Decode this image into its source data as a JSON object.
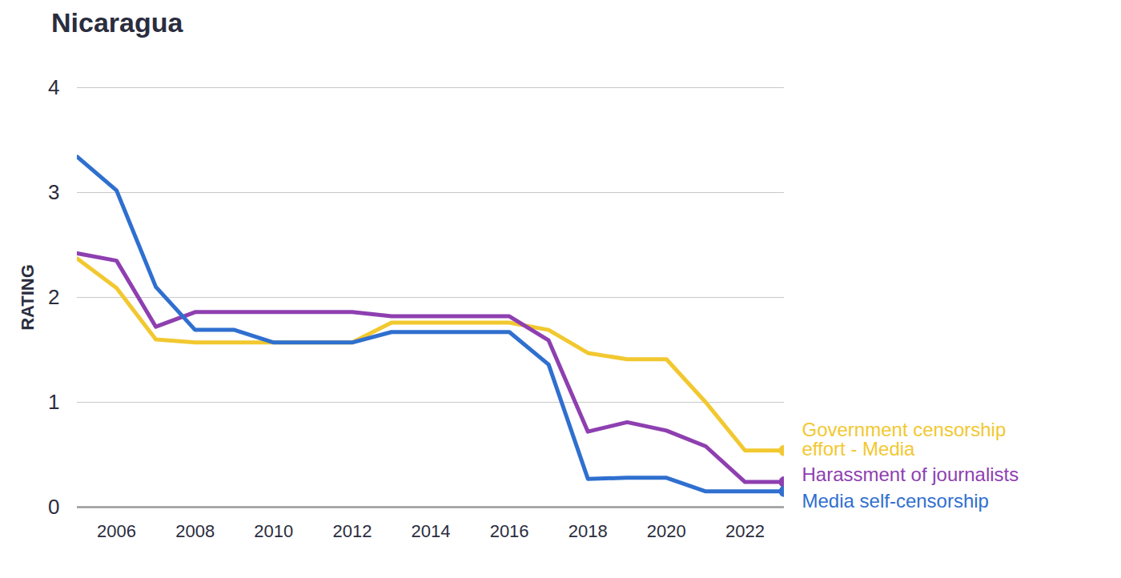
{
  "chart_data": {
    "type": "line",
    "title": "Nicaragua",
    "y_label": "RATING",
    "x": [
      2005,
      2006,
      2007,
      2008,
      2009,
      2010,
      2011,
      2012,
      2013,
      2014,
      2015,
      2016,
      2017,
      2018,
      2019,
      2020,
      2021,
      2022,
      2023
    ],
    "series": [
      {
        "name": "Government censorship effort - Media",
        "color": "#f2c830",
        "values": [
          2.37,
          2.09,
          1.6,
          1.57,
          1.57,
          1.57,
          1.57,
          1.57,
          1.76,
          1.76,
          1.76,
          1.76,
          1.69,
          1.47,
          1.41,
          1.41,
          1.0,
          0.54,
          0.54
        ]
      },
      {
        "name": "Harassment of journalists",
        "color": "#8e3fb0",
        "values": [
          2.42,
          2.35,
          1.72,
          1.86,
          1.86,
          1.86,
          1.86,
          1.86,
          1.82,
          1.82,
          1.82,
          1.82,
          1.59,
          0.72,
          0.81,
          0.73,
          0.58,
          0.24,
          0.24
        ]
      },
      {
        "name": "Media self-censorship",
        "color": "#2f6fcf",
        "values": [
          3.34,
          3.02,
          2.1,
          1.69,
          1.69,
          1.57,
          1.57,
          1.57,
          1.67,
          1.67,
          1.67,
          1.67,
          1.36,
          0.27,
          0.28,
          0.28,
          0.15,
          0.15,
          0.15
        ]
      }
    ],
    "xlim": [
      2005,
      2023
    ],
    "xticks": [
      2006,
      2008,
      2010,
      2012,
      2014,
      2016,
      2018,
      2020,
      2022
    ],
    "ylim": [
      0,
      4
    ],
    "yticks": [
      0,
      1,
      2,
      3,
      4
    ],
    "grid": true
  }
}
